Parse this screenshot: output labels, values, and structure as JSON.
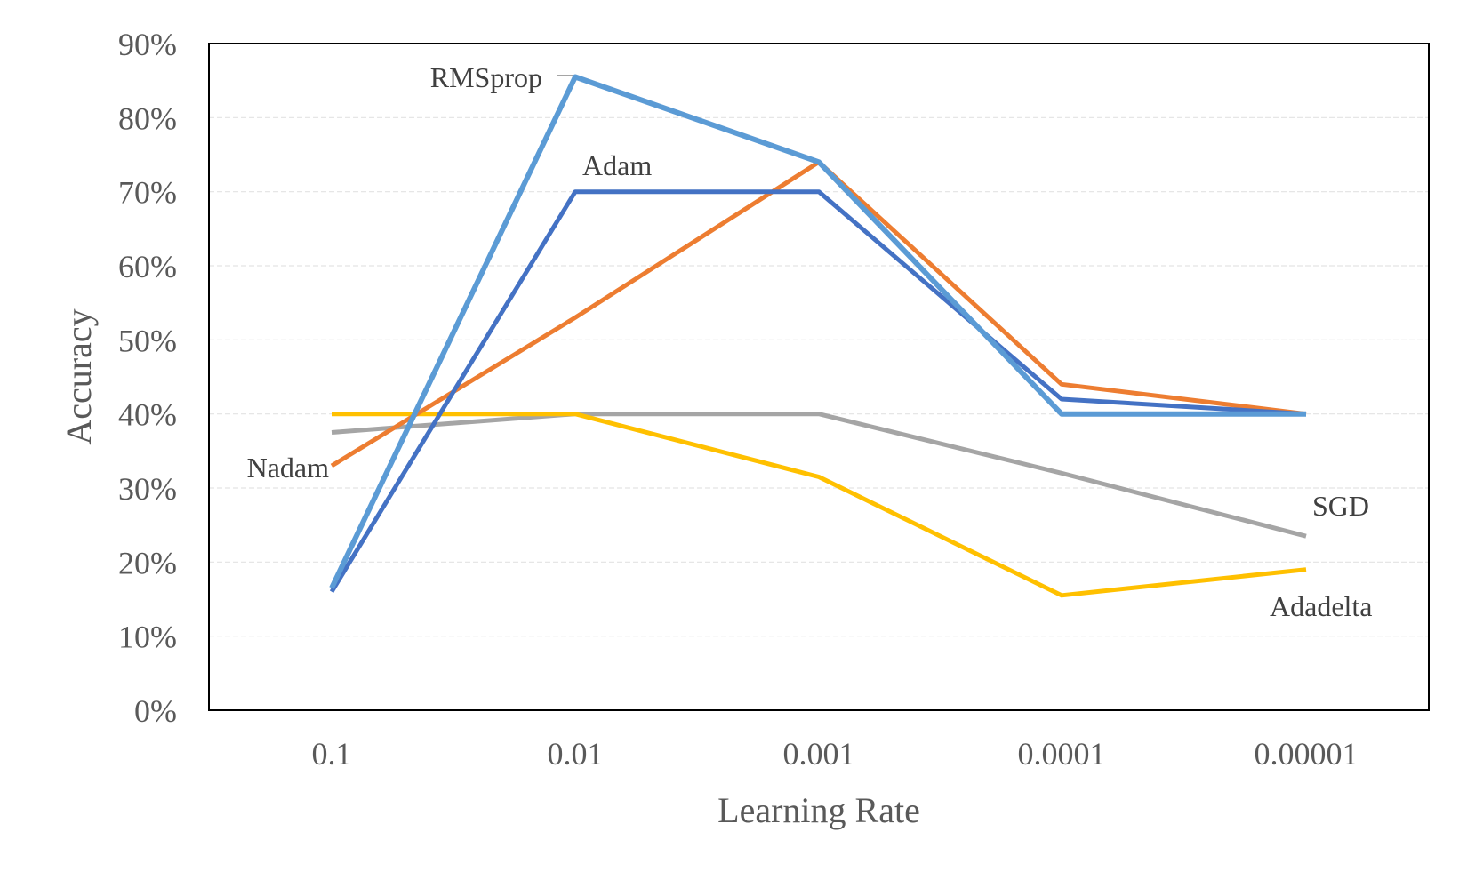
{
  "chart_data": {
    "type": "line",
    "title": "",
    "xlabel": "Learning Rate",
    "ylabel": "Accuracy",
    "categories": [
      "0.1",
      "0.01",
      "0.001",
      "0.0001",
      "0.00001"
    ],
    "ylim": [
      0,
      0.9
    ],
    "yticks": [
      0,
      0.1,
      0.2,
      0.3,
      0.4,
      0.5,
      0.6,
      0.7,
      0.8,
      0.9
    ],
    "ytick_labels": [
      "0%",
      "10%",
      "20%",
      "30%",
      "40%",
      "50%",
      "60%",
      "70%",
      "80%",
      "90%"
    ],
    "grid": true,
    "legend": "none (series labelled inline)",
    "series": [
      {
        "name": "Adam",
        "color": "#4472C4",
        "values": [
          0.16,
          0.7,
          0.7,
          0.42,
          0.4
        ]
      },
      {
        "name": "Nadam",
        "color": "#ED7D31",
        "values": [
          0.33,
          0.53,
          0.74,
          0.44,
          0.4
        ]
      },
      {
        "name": "SGD",
        "color": "#A5A5A5",
        "values": [
          0.375,
          0.4,
          0.4,
          0.32,
          0.235
        ]
      },
      {
        "name": "Adadelta",
        "color": "#FFC000",
        "values": [
          0.4,
          0.4,
          0.315,
          0.155,
          0.19
        ]
      },
      {
        "name": "RMSprop",
        "color": "#5B9BD5",
        "values": [
          0.165,
          0.855,
          0.74,
          0.4,
          0.4
        ]
      }
    ]
  }
}
